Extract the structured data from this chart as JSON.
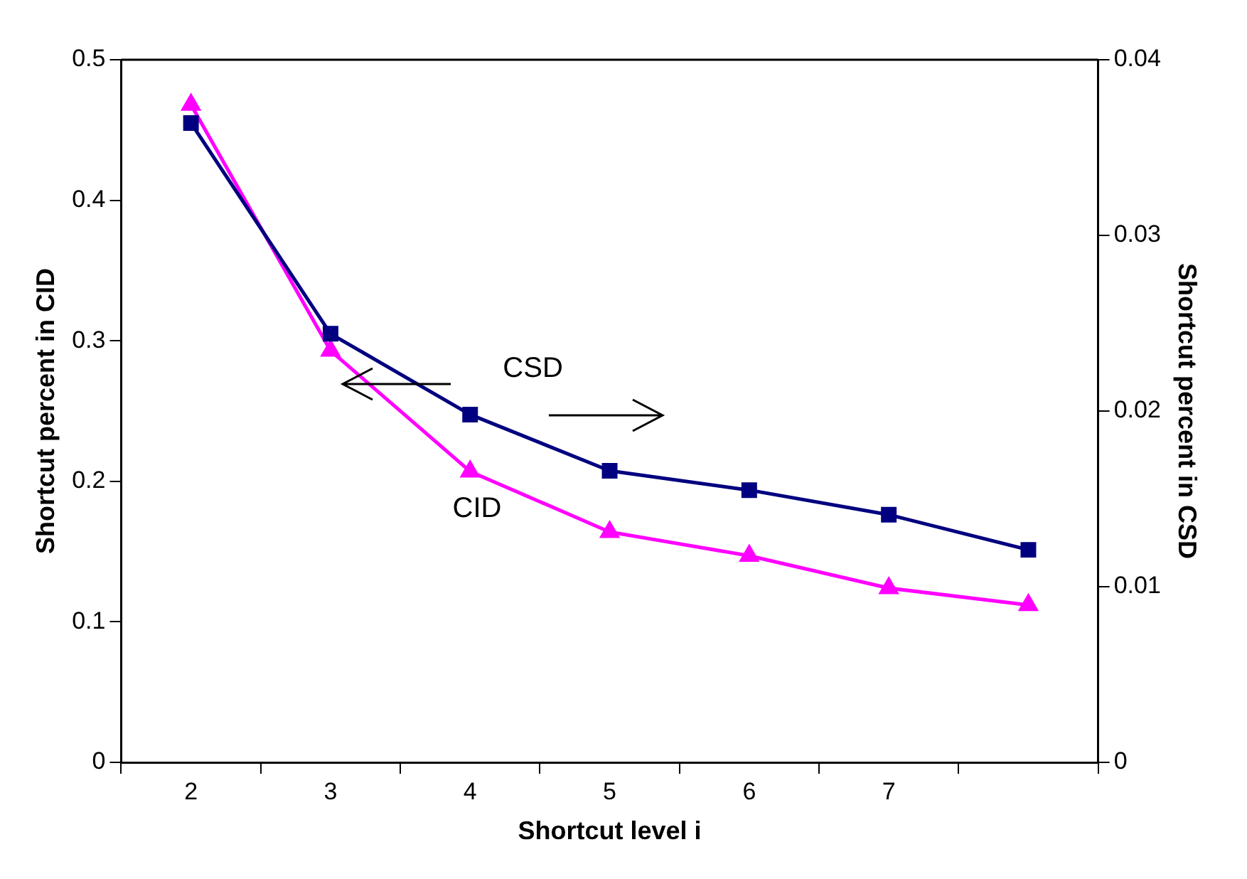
{
  "chart_data": {
    "type": "line",
    "xlabel": "Shortcut level i",
    "ylabel": "Shortcut percent in CID",
    "y2label": "Shortcut percent in CSD",
    "categories": [
      "2",
      "3",
      "4",
      "5",
      "6",
      "7",
      null
    ],
    "series": [
      {
        "name": "CSD",
        "color": "#000080",
        "axis": "y2",
        "marker": "square",
        "values": [
          0.0364,
          0.0244,
          0.0198,
          0.0166,
          0.0155,
          0.0141,
          0.0121
        ]
      },
      {
        "name": "CID",
        "color": "#ff00ff",
        "axis": "y",
        "marker": "triangle",
        "values": [
          0.468,
          0.293,
          0.207,
          0.164,
          0.147,
          0.124,
          0.112
        ]
      }
    ],
    "ylim": [
      0,
      0.5
    ],
    "yticks": [
      0,
      0.1,
      0.2,
      0.3,
      0.4,
      0.5
    ],
    "y2lim": [
      0,
      0.04
    ],
    "y2ticks": [
      0,
      0.01,
      0.02,
      0.03,
      0.04
    ],
    "grid": false,
    "legend": false
  }
}
